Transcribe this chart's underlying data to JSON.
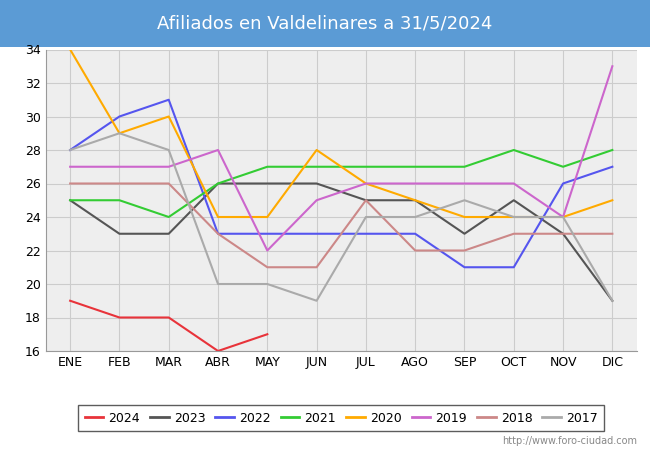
{
  "title": "Afiliados en Valdelinares a 31/5/2024",
  "title_bg_color": "#5b9bd5",
  "title_text_color": "#ffffff",
  "months": [
    "ENE",
    "FEB",
    "MAR",
    "ABR",
    "MAY",
    "JUN",
    "JUL",
    "AGO",
    "SEP",
    "OCT",
    "NOV",
    "DIC"
  ],
  "ylim": [
    16,
    34
  ],
  "yticks": [
    16,
    18,
    20,
    22,
    24,
    26,
    28,
    30,
    32,
    34
  ],
  "series": [
    {
      "year": "2024",
      "color": "#e8333a",
      "data": [
        19,
        18,
        18,
        16,
        17,
        null,
        null,
        null,
        null,
        null,
        null,
        null
      ]
    },
    {
      "year": "2023",
      "color": "#555555",
      "data": [
        25,
        23,
        23,
        26,
        26,
        26,
        25,
        25,
        23,
        25,
        23,
        19
      ]
    },
    {
      "year": "2022",
      "color": "#5555ee",
      "data": [
        28,
        30,
        31,
        23,
        23,
        23,
        23,
        23,
        21,
        21,
        26,
        27
      ]
    },
    {
      "year": "2021",
      "color": "#33cc33",
      "data": [
        25,
        25,
        24,
        26,
        27,
        27,
        27,
        27,
        27,
        28,
        27,
        28
      ]
    },
    {
      "year": "2020",
      "color": "#ffaa00",
      "data": [
        34,
        29,
        30,
        24,
        24,
        28,
        26,
        25,
        24,
        24,
        24,
        25
      ]
    },
    {
      "year": "2019",
      "color": "#cc66cc",
      "data": [
        27,
        27,
        27,
        28,
        22,
        25,
        26,
        26,
        26,
        26,
        24,
        33
      ]
    },
    {
      "year": "2018",
      "color": "#cc8888",
      "data": [
        26,
        26,
        26,
        23,
        21,
        21,
        25,
        22,
        22,
        23,
        23,
        23
      ]
    },
    {
      "year": "2017",
      "color": "#aaaaaa",
      "data": [
        28,
        29,
        28,
        20,
        20,
        19,
        24,
        24,
        25,
        24,
        24,
        19
      ]
    }
  ],
  "watermark": "http://www.foro-ciudad.com",
  "grid_color": "#cccccc",
  "bg_color": "#eeeeee"
}
